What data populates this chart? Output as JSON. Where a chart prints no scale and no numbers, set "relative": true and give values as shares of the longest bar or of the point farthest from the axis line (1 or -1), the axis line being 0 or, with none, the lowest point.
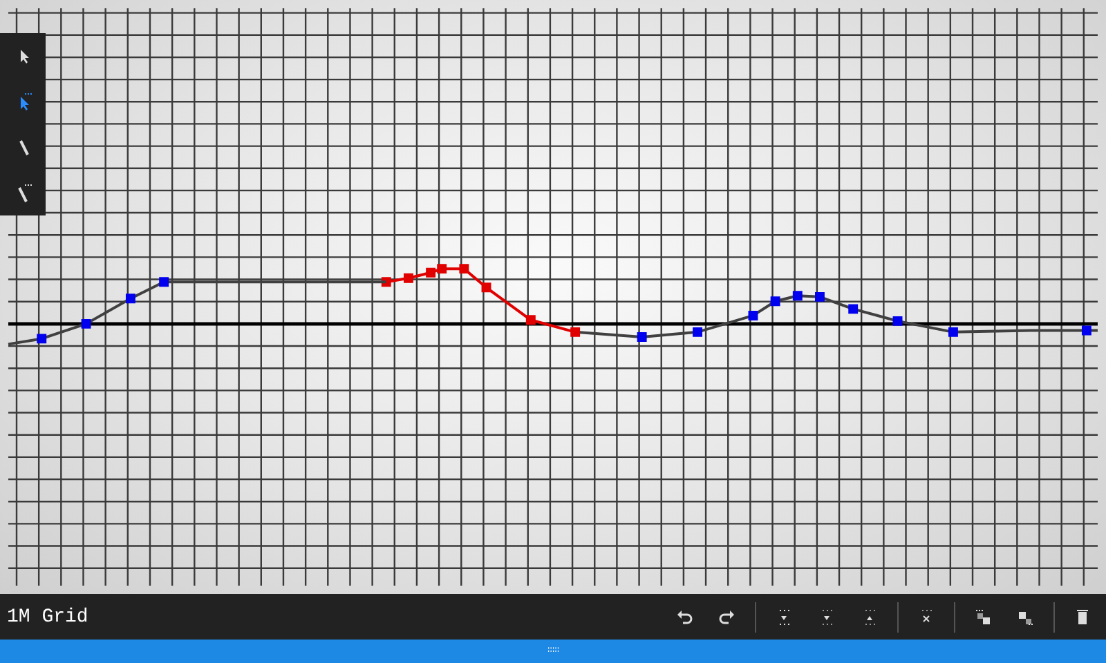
{
  "chart_data": {
    "type": "line",
    "relative": true,
    "grid": true,
    "legend": false,
    "categories": [
      null,
      null,
      null,
      null,
      null,
      null,
      null,
      null,
      null,
      null,
      null,
      null,
      null,
      null,
      null,
      null,
      null,
      null,
      null,
      null,
      null,
      null,
      null,
      null,
      null,
      null,
      null,
      null,
      null,
      null,
      null,
      null,
      null,
      null,
      null,
      null,
      null,
      null,
      null,
      null,
      null,
      null,
      null,
      null,
      null,
      null,
      null,
      null,
      null,
      null,
      null,
      null,
      null,
      null,
      null,
      null,
      null,
      null,
      null,
      null,
      null,
      null,
      null,
      null,
      null,
      null,
      null,
      null,
      null,
      null,
      null,
      null,
      null,
      null,
      null,
      null,
      null,
      null,
      null,
      null,
      null,
      null,
      null,
      null,
      null,
      null,
      null,
      null,
      null,
      null,
      null,
      null,
      null,
      null,
      null,
      null,
      null,
      null,
      null
    ],
    "series": [
      {
        "color": "#404040",
        "marker": "square",
        "values": [
          -0.37,
          null,
          null,
          -0.27,
          null,
          null,
          null,
          0,
          null,
          null,
          null,
          0.46,
          null,
          null,
          0.76,
          null,
          null,
          null,
          null,
          null,
          null,
          null,
          null,
          null,
          null,
          null,
          null,
          null,
          null,
          null,
          null,
          null,
          null,
          null,
          0.76,
          null,
          null,
          null,
          null,
          null,
          null,
          null,
          null,
          null,
          null,
          null,
          null,
          null,
          null,
          null,
          null,
          null,
          null,
          null,
          null,
          null,
          null,
          null,
          null,
          null,
          null,
          null,
          null,
          null,
          null,
          null,
          null,
          null,
          null,
          null,
          null,
          null,
          null,
          null,
          null,
          null,
          null,
          null,
          null,
          null,
          null,
          null,
          null,
          null,
          null,
          null,
          null,
          null,
          null,
          null,
          null,
          null,
          null,
          null,
          null,
          null,
          null,
          null,
          null
        ],
        "colors": [
          null,
          null,
          null,
          "#0000ee",
          null,
          null,
          null,
          "#0000ee",
          null,
          null,
          null,
          "#0000ee",
          null,
          null,
          "#0000ee",
          null,
          null,
          null,
          null,
          null,
          null,
          null,
          null,
          null,
          null,
          null,
          null,
          null,
          null,
          null,
          null,
          null,
          null,
          null,
          null,
          null,
          null,
          null,
          null,
          null,
          null,
          null,
          null,
          null,
          null,
          null,
          null,
          null,
          null,
          null,
          null,
          null,
          null,
          null,
          null,
          null,
          null,
          null,
          null,
          null,
          null,
          null,
          null,
          null,
          null,
          null,
          null,
          null,
          null,
          null,
          null,
          null,
          null,
          null,
          null,
          null,
          null,
          null,
          null,
          null,
          null,
          null,
          null,
          null,
          null,
          null,
          null,
          null,
          null,
          null,
          null,
          null,
          null,
          null,
          null,
          null,
          null,
          null,
          null
        ]
      },
      {
        "color": "#e00000",
        "marker": "square",
        "values": [
          null,
          null,
          null,
          null,
          null,
          null,
          null,
          null,
          null,
          null,
          null,
          null,
          null,
          null,
          null,
          null,
          null,
          null,
          null,
          null,
          null,
          null,
          null,
          null,
          null,
          null,
          null,
          null,
          null,
          null,
          null,
          null,
          null,
          null,
          0.76,
          null,
          0.83,
          null,
          0.93,
          1,
          null,
          1,
          null,
          0.66,
          null,
          null,
          null,
          0.07,
          null,
          null,
          null,
          -0.15,
          null,
          null,
          null,
          null,
          null,
          null,
          null,
          null,
          null,
          null,
          null,
          null,
          null,
          null,
          null,
          null,
          null,
          null,
          null,
          null,
          null,
          null,
          null,
          null,
          null,
          null,
          null,
          null,
          null,
          null,
          null,
          null,
          null,
          null,
          null,
          null,
          null,
          null,
          null,
          null,
          null,
          null,
          null,
          null,
          null,
          null,
          null
        ]
      },
      {
        "color": "#404040",
        "marker": "square",
        "values": [
          null,
          null,
          null,
          null,
          null,
          null,
          null,
          null,
          null,
          null,
          null,
          null,
          null,
          null,
          null,
          null,
          null,
          null,
          null,
          null,
          null,
          null,
          null,
          null,
          null,
          null,
          null,
          null,
          null,
          null,
          null,
          null,
          null,
          null,
          null,
          null,
          null,
          null,
          null,
          null,
          null,
          null,
          null,
          null,
          null,
          null,
          null,
          null,
          null,
          null,
          null,
          -0.15,
          null,
          null,
          null,
          null,
          null,
          -0.24,
          null,
          null,
          null,
          null,
          -0.15,
          null,
          null,
          null,
          null,
          0.15,
          null,
          0.41,
          null,
          0.51,
          null,
          0.49,
          null,
          null,
          0.27,
          null,
          null,
          null,
          0.05,
          null,
          null,
          null,
          null,
          -0.15,
          null,
          null,
          null,
          null,
          null,
          null,
          -0.12,
          null,
          null,
          null,
          null,
          -0.12,
          -0.12
        ],
        "colors": [
          null,
          null,
          null,
          null,
          null,
          null,
          null,
          null,
          null,
          null,
          null,
          null,
          null,
          null,
          null,
          null,
          null,
          null,
          null,
          null,
          null,
          null,
          null,
          null,
          null,
          null,
          null,
          null,
          null,
          null,
          null,
          null,
          null,
          null,
          null,
          null,
          null,
          null,
          null,
          null,
          null,
          null,
          null,
          null,
          null,
          null,
          null,
          null,
          null,
          null,
          null,
          null,
          null,
          null,
          null,
          null,
          null,
          "#0000ee",
          null,
          null,
          null,
          null,
          "#0000ee",
          null,
          null,
          null,
          null,
          "#0000ee",
          null,
          "#0000ee",
          null,
          "#0000ee",
          null,
          "#0000ee",
          null,
          null,
          "#0000ee",
          null,
          null,
          null,
          "#0000ee",
          null,
          null,
          null,
          null,
          "#0000ee",
          null,
          null,
          null,
          null,
          null,
          null,
          null,
          null,
          null,
          null,
          null,
          "#0000ee",
          null
        ]
      }
    ],
    "annotations": [
      "1M Grid"
    ]
  }
}
